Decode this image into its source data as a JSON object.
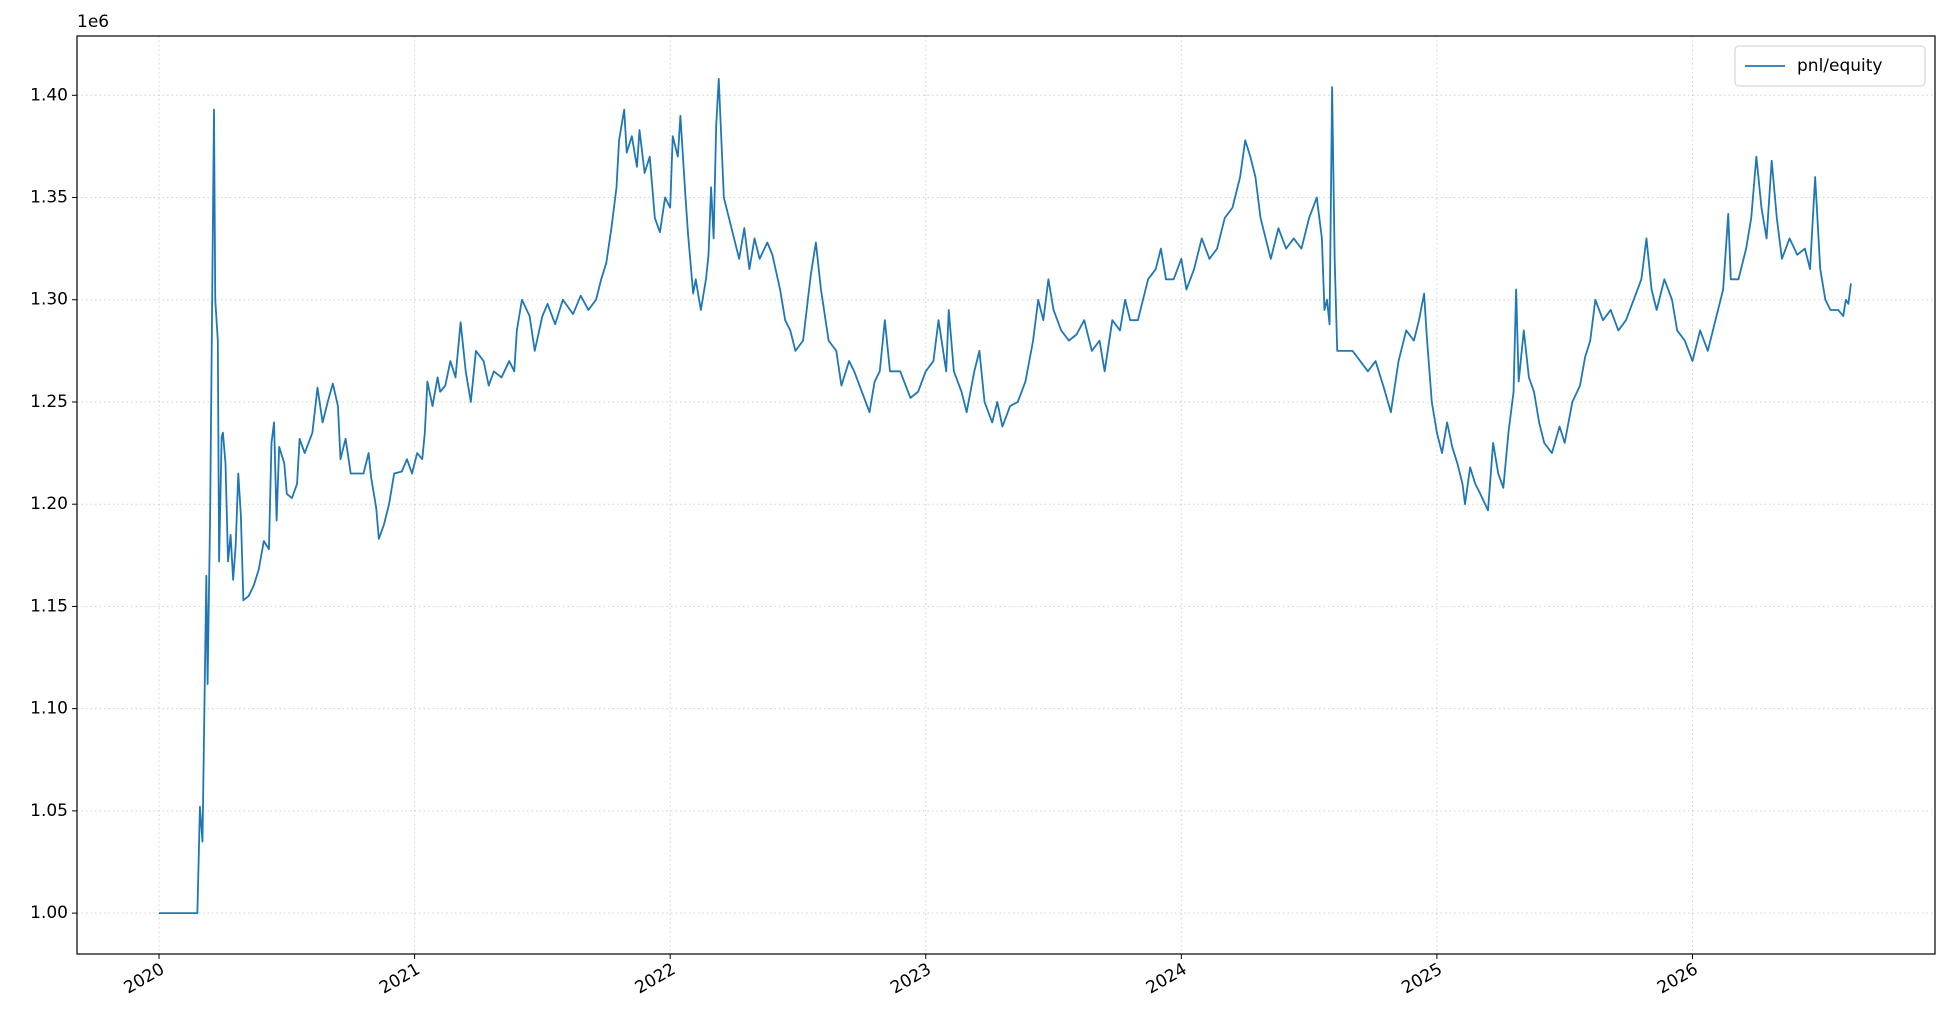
{
  "chart_data": {
    "type": "line",
    "y_offset_label": "1e6",
    "x": [
      2020.0,
      2020.15,
      2020.16,
      2020.17,
      2020.185,
      2020.19,
      2020.2,
      2020.215,
      2020.22,
      2020.23,
      2020.235,
      2020.245,
      2020.25,
      2020.26,
      2020.27,
      2020.28,
      2020.29,
      2020.3,
      2020.31,
      2020.32,
      2020.33,
      2020.35,
      2020.37,
      2020.39,
      2020.41,
      2020.43,
      2020.44,
      2020.45,
      2020.46,
      2020.47,
      2020.49,
      2020.5,
      2020.52,
      2020.54,
      2020.55,
      2020.57,
      2020.6,
      2020.62,
      2020.64,
      2020.66,
      2020.68,
      2020.7,
      2020.71,
      2020.73,
      2020.75,
      2020.8,
      2020.82,
      2020.83,
      2020.85,
      2020.86,
      2020.88,
      2020.9,
      2020.92,
      2020.95,
      2020.97,
      2020.99,
      2021.01,
      2021.03,
      2021.04,
      2021.05,
      2021.07,
      2021.09,
      2021.1,
      2021.12,
      2021.14,
      2021.16,
      2021.18,
      2021.2,
      2021.22,
      2021.24,
      2021.27,
      2021.29,
      2021.31,
      2021.34,
      2021.37,
      2021.39,
      2021.4,
      2021.42,
      2021.45,
      2021.47,
      2021.5,
      2021.52,
      2021.55,
      2021.58,
      2021.62,
      2021.65,
      2021.68,
      2021.71,
      2021.73,
      2021.75,
      2021.77,
      2021.79,
      2021.8,
      2021.82,
      2021.83,
      2021.85,
      2021.87,
      2021.88,
      2021.9,
      2021.92,
      2021.94,
      2021.96,
      2021.98,
      2022.0,
      2022.01,
      2022.03,
      2022.04,
      2022.06,
      2022.07,
      2022.09,
      2022.1,
      2022.12,
      2022.14,
      2022.15,
      2022.16,
      2022.17,
      2022.18,
      2022.19,
      2022.21,
      2022.23,
      2022.25,
      2022.27,
      2022.29,
      2022.31,
      2022.33,
      2022.35,
      2022.38,
      2022.4,
      2022.43,
      2022.45,
      2022.47,
      2022.49,
      2022.52,
      2022.55,
      2022.57,
      2022.59,
      2022.62,
      2022.65,
      2022.67,
      2022.7,
      2022.72,
      2022.75,
      2022.78,
      2022.8,
      2022.82,
      2022.84,
      2022.86,
      2022.9,
      2022.94,
      2022.97,
      2023.0,
      2023.03,
      2023.05,
      2023.08,
      2023.09,
      2023.11,
      2023.14,
      2023.16,
      2023.19,
      2023.21,
      2023.23,
      2023.26,
      2023.28,
      2023.3,
      2023.33,
      2023.36,
      2023.39,
      2023.42,
      2023.44,
      2023.46,
      2023.48,
      2023.5,
      2023.53,
      2023.56,
      2023.59,
      2023.62,
      2023.65,
      2023.68,
      2023.7,
      2023.73,
      2023.76,
      2023.78,
      2023.8,
      2023.83,
      2023.87,
      2023.9,
      2023.92,
      2023.94,
      2023.97,
      2024.0,
      2024.02,
      2024.05,
      2024.08,
      2024.11,
      2024.14,
      2024.17,
      2024.2,
      2024.23,
      2024.25,
      2024.27,
      2024.29,
      2024.31,
      2024.33,
      2024.35,
      2024.38,
      2024.41,
      2024.44,
      2024.47,
      2024.5,
      2024.53,
      2024.55,
      2024.56,
      2024.57,
      2024.58,
      2024.59,
      2024.6,
      2024.61,
      2024.64,
      2024.67,
      2024.7,
      2024.73,
      2024.76,
      2024.79,
      2024.82,
      2024.85,
      2024.88,
      2024.91,
      2024.93,
      2024.95,
      2024.96,
      2024.98,
      2025.0,
      2025.02,
      2025.04,
      2025.06,
      2025.08,
      2025.1,
      2025.11,
      2025.13,
      2025.15,
      2025.17,
      2025.2,
      2025.22,
      2025.24,
      2025.26,
      2025.28,
      2025.3,
      2025.31,
      2025.32,
      2025.34,
      2025.36,
      2025.38,
      2025.4,
      2025.42,
      2025.45,
      2025.48,
      2025.5,
      2025.53,
      2025.56,
      2025.58,
      2025.6,
      2025.62,
      2025.65,
      2025.68,
      2025.71,
      2025.74,
      2025.77,
      2025.8,
      2025.82,
      2025.84,
      2025.86,
      2025.89,
      2025.92,
      2025.94,
      2025.97,
      2026.0,
      2026.03,
      2026.06,
      2026.09,
      2026.12,
      2026.14,
      2026.15,
      2026.18,
      2026.21,
      2026.23,
      2026.25,
      2026.27,
      2026.29,
      2026.31,
      2026.33,
      2026.35,
      2026.38,
      2026.41,
      2026.44,
      2026.46,
      2026.48,
      2026.5,
      2026.52,
      2026.54,
      2026.57,
      2026.59,
      2026.6,
      2026.61,
      2026.62
    ],
    "series": [
      {
        "name": "pnl/equity",
        "color": "#1f77b4",
        "values": [
          1.0,
          1.0,
          1.052,
          1.035,
          1.165,
          1.112,
          1.196,
          1.393,
          1.3,
          1.28,
          1.172,
          1.233,
          1.235,
          1.22,
          1.172,
          1.185,
          1.163,
          1.18,
          1.215,
          1.195,
          1.153,
          1.155,
          1.16,
          1.168,
          1.182,
          1.178,
          1.23,
          1.24,
          1.192,
          1.228,
          1.22,
          1.205,
          1.203,
          1.21,
          1.232,
          1.225,
          1.235,
          1.257,
          1.24,
          1.25,
          1.259,
          1.248,
          1.222,
          1.232,
          1.215,
          1.215,
          1.225,
          1.213,
          1.198,
          1.183,
          1.19,
          1.2,
          1.215,
          1.216,
          1.222,
          1.215,
          1.225,
          1.222,
          1.235,
          1.26,
          1.248,
          1.262,
          1.255,
          1.258,
          1.27,
          1.262,
          1.289,
          1.265,
          1.25,
          1.275,
          1.27,
          1.258,
          1.265,
          1.262,
          1.27,
          1.265,
          1.285,
          1.3,
          1.292,
          1.275,
          1.292,
          1.298,
          1.288,
          1.3,
          1.293,
          1.302,
          1.295,
          1.3,
          1.31,
          1.318,
          1.335,
          1.355,
          1.378,
          1.393,
          1.372,
          1.38,
          1.365,
          1.383,
          1.362,
          1.37,
          1.34,
          1.333,
          1.35,
          1.345,
          1.38,
          1.37,
          1.39,
          1.35,
          1.332,
          1.303,
          1.31,
          1.295,
          1.31,
          1.322,
          1.355,
          1.33,
          1.385,
          1.408,
          1.35,
          1.34,
          1.33,
          1.32,
          1.335,
          1.315,
          1.33,
          1.32,
          1.328,
          1.322,
          1.305,
          1.29,
          1.285,
          1.275,
          1.28,
          1.312,
          1.328,
          1.305,
          1.28,
          1.275,
          1.258,
          1.27,
          1.265,
          1.255,
          1.245,
          1.26,
          1.265,
          1.29,
          1.265,
          1.265,
          1.252,
          1.255,
          1.265,
          1.27,
          1.29,
          1.265,
          1.295,
          1.265,
          1.255,
          1.245,
          1.265,
          1.275,
          1.25,
          1.24,
          1.25,
          1.238,
          1.248,
          1.25,
          1.26,
          1.28,
          1.3,
          1.29,
          1.31,
          1.295,
          1.285,
          1.28,
          1.283,
          1.29,
          1.275,
          1.28,
          1.265,
          1.29,
          1.285,
          1.3,
          1.29,
          1.29,
          1.31,
          1.315,
          1.325,
          1.31,
          1.31,
          1.32,
          1.305,
          1.315,
          1.33,
          1.32,
          1.325,
          1.34,
          1.345,
          1.36,
          1.378,
          1.37,
          1.36,
          1.34,
          1.33,
          1.32,
          1.335,
          1.325,
          1.33,
          1.325,
          1.34,
          1.35,
          1.33,
          1.295,
          1.3,
          1.288,
          1.404,
          1.32,
          1.275,
          1.275,
          1.275,
          1.27,
          1.265,
          1.27,
          1.258,
          1.245,
          1.27,
          1.285,
          1.28,
          1.29,
          1.303,
          1.283,
          1.25,
          1.235,
          1.225,
          1.24,
          1.228,
          1.22,
          1.21,
          1.2,
          1.218,
          1.21,
          1.205,
          1.197,
          1.23,
          1.215,
          1.208,
          1.235,
          1.255,
          1.305,
          1.26,
          1.285,
          1.262,
          1.255,
          1.24,
          1.23,
          1.225,
          1.238,
          1.23,
          1.25,
          1.258,
          1.272,
          1.28,
          1.3,
          1.29,
          1.295,
          1.285,
          1.29,
          1.3,
          1.31,
          1.33,
          1.305,
          1.295,
          1.31,
          1.3,
          1.285,
          1.28,
          1.27,
          1.285,
          1.275,
          1.29,
          1.305,
          1.342,
          1.31,
          1.31,
          1.325,
          1.34,
          1.37,
          1.345,
          1.33,
          1.368,
          1.34,
          1.32,
          1.33,
          1.322,
          1.325,
          1.315,
          1.36,
          1.315,
          1.3,
          1.295,
          1.295,
          1.292,
          1.3,
          1.298,
          1.308
        ]
      }
    ],
    "xlim": [
      2019.679,
      2026.949
    ],
    "xticks": [
      2020,
      2021,
      2022,
      2023,
      2024,
      2025,
      2026
    ],
    "ylim": [
      0.98,
      1.429
    ],
    "yticks": [
      {
        "value": 1.0,
        "label": "1.00"
      },
      {
        "value": 1.05,
        "label": "1.05"
      },
      {
        "value": 1.1,
        "label": "1.10"
      },
      {
        "value": 1.15,
        "label": "1.15"
      },
      {
        "value": 1.2,
        "label": "1.20"
      },
      {
        "value": 1.25,
        "label": "1.25"
      },
      {
        "value": 1.3,
        "label": "1.30"
      },
      {
        "value": 1.35,
        "label": "1.35"
      },
      {
        "value": 1.4,
        "label": "1.40"
      }
    ],
    "grid": true,
    "legend": "upper right"
  }
}
